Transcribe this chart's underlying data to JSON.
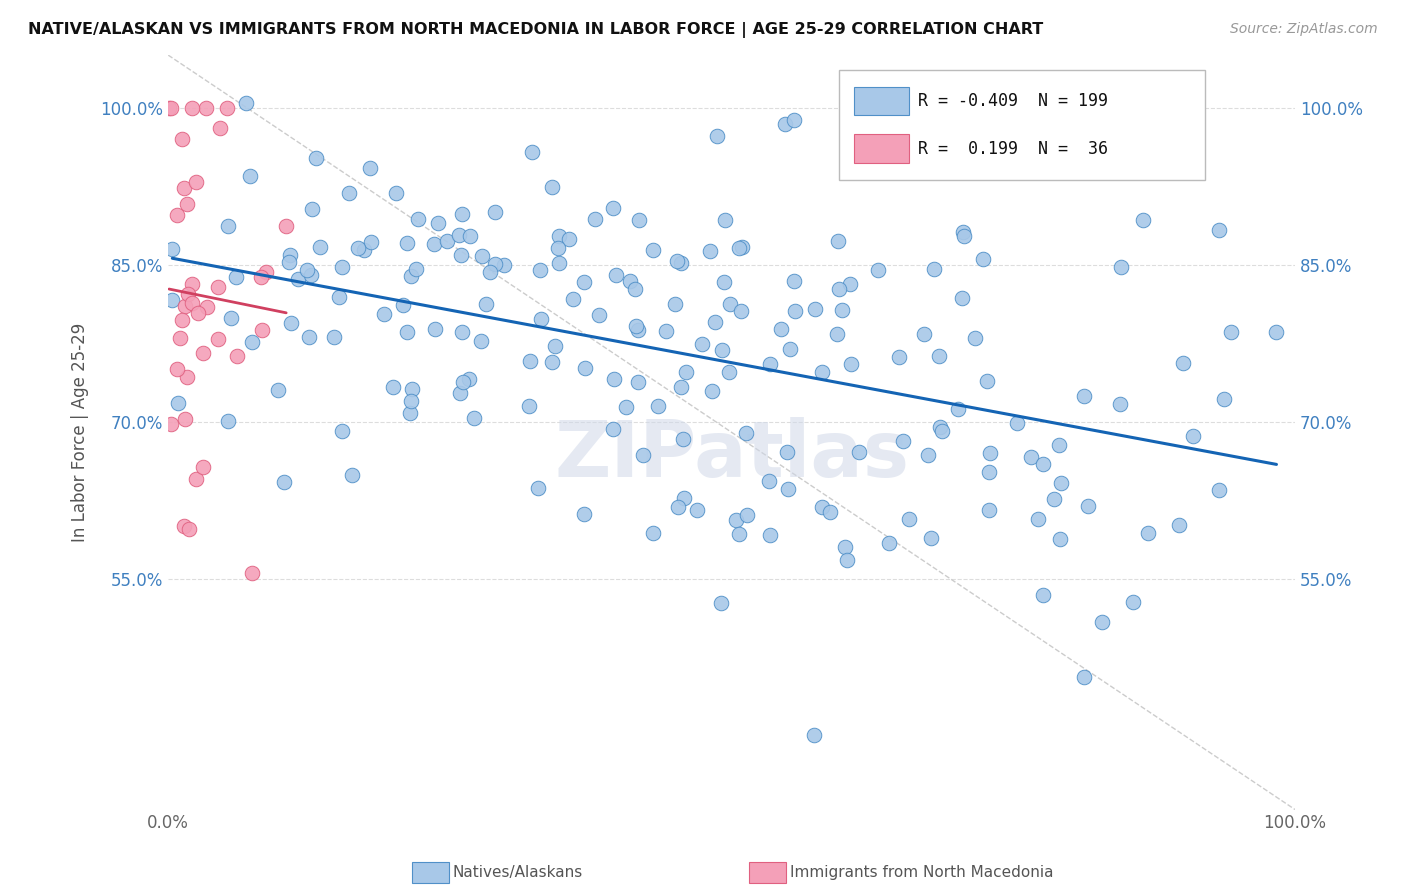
{
  "title": "NATIVE/ALASKAN VS IMMIGRANTS FROM NORTH MACEDONIA IN LABOR FORCE | AGE 25-29 CORRELATION CHART",
  "source_text": "Source: ZipAtlas.com",
  "ylabel_text": "In Labor Force | Age 25-29",
  "x_min": 0.0,
  "x_max": 1.0,
  "y_min": 0.33,
  "y_max": 1.05,
  "y_ticks": [
    0.55,
    0.7,
    0.85,
    1.0
  ],
  "y_tick_labels": [
    "55.0%",
    "70.0%",
    "85.0%",
    "100.0%"
  ],
  "legend_r_blue": "-0.409",
  "legend_n_blue": "199",
  "legend_r_pink": "0.199",
  "legend_n_pink": "36",
  "blue_color": "#a8c8e8",
  "blue_edge_color": "#5090c8",
  "blue_line_color": "#1464b4",
  "pink_color": "#f4a0b8",
  "pink_edge_color": "#e06080",
  "pink_line_color": "#d04060",
  "watermark": "ZIPatlas",
  "tick_color": "#4080c0",
  "diag_color": "#cccccc",
  "grid_color": "#dddddd"
}
